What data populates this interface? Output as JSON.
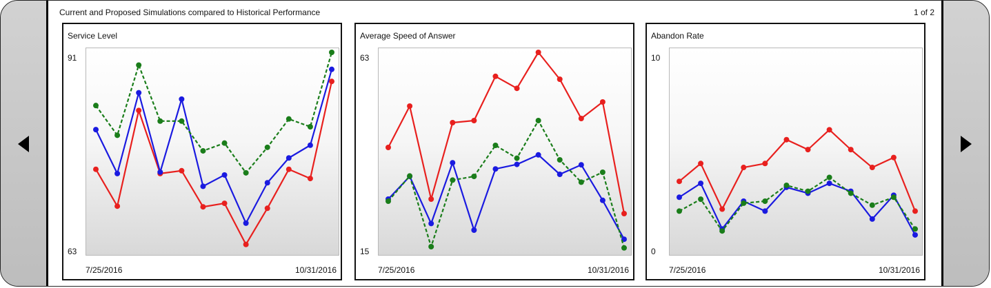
{
  "header": {
    "title": "Current and Proposed Simulations compared to Historical Performance",
    "page_indicator": "1 of 2"
  },
  "colors": {
    "red": "#e8201e",
    "blue": "#1a1ae0",
    "green": "#1a7d1a"
  },
  "chart_data": [
    {
      "type": "line",
      "title": "Service Level",
      "ylim": [
        63,
        91
      ],
      "y_labels": [
        "91",
        "63"
      ],
      "x_labels": [
        "7/25/2016",
        "10/31/2016"
      ],
      "series": [
        {
          "color": "red",
          "dash": false,
          "values": [
            74.5,
            69.3,
            82.8,
            73.9,
            74.3,
            69.2,
            69.7,
            63.9,
            69.0,
            74.5,
            73.2,
            86.9
          ]
        },
        {
          "color": "blue",
          "dash": false,
          "values": [
            80.1,
            73.9,
            85.3,
            74.1,
            84.4,
            72.1,
            73.7,
            66.9,
            72.6,
            76.1,
            77.9,
            88.6
          ]
        },
        {
          "color": "green",
          "dash": true,
          "values": [
            83.5,
            79.3,
            89.2,
            81.3,
            81.3,
            77.1,
            78.2,
            74.0,
            77.6,
            81.6,
            80.5,
            91.0
          ]
        }
      ]
    },
    {
      "type": "line",
      "title": "Average Speed of Answer",
      "ylim": [
        15,
        63
      ],
      "y_labels": [
        "63",
        "15"
      ],
      "x_labels": [
        "7/25/2016",
        "10/31/2016"
      ],
      "series": [
        {
          "color": "red",
          "dash": false,
          "values": [
            40.0,
            50.0,
            27.5,
            46.0,
            46.5,
            57.2,
            54.3,
            63.0,
            56.5,
            47.0,
            51.0,
            24.0
          ]
        },
        {
          "color": "blue",
          "dash": false,
          "values": [
            27.5,
            33.0,
            21.6,
            36.3,
            20.0,
            34.8,
            35.9,
            38.2,
            33.5,
            35.8,
            27.2,
            17.8
          ]
        },
        {
          "color": "green",
          "dash": true,
          "values": [
            27.0,
            33.1,
            16.0,
            32.1,
            33.0,
            40.5,
            37.4,
            46.5,
            37.0,
            31.6,
            34.0,
            15.7
          ]
        }
      ]
    },
    {
      "type": "line",
      "title": "Abandon Rate",
      "ylim": [
        0,
        10
      ],
      "y_labels": [
        "10",
        "0"
      ],
      "x_labels": [
        "7/25/2016",
        "10/31/2016"
      ],
      "series": [
        {
          "color": "red",
          "dash": false,
          "values": [
            3.5,
            4.4,
            2.1,
            4.2,
            4.4,
            5.6,
            5.1,
            6.1,
            5.1,
            4.2,
            4.7,
            2.0
          ]
        },
        {
          "color": "blue",
          "dash": false,
          "values": [
            2.7,
            3.4,
            1.1,
            2.5,
            2.0,
            3.2,
            2.9,
            3.4,
            3.0,
            1.6,
            2.8,
            0.8
          ]
        },
        {
          "color": "green",
          "dash": true,
          "values": [
            2.0,
            2.6,
            1.0,
            2.4,
            2.5,
            3.3,
            3.0,
            3.7,
            2.9,
            2.3,
            2.7,
            1.1
          ]
        }
      ]
    }
  ]
}
